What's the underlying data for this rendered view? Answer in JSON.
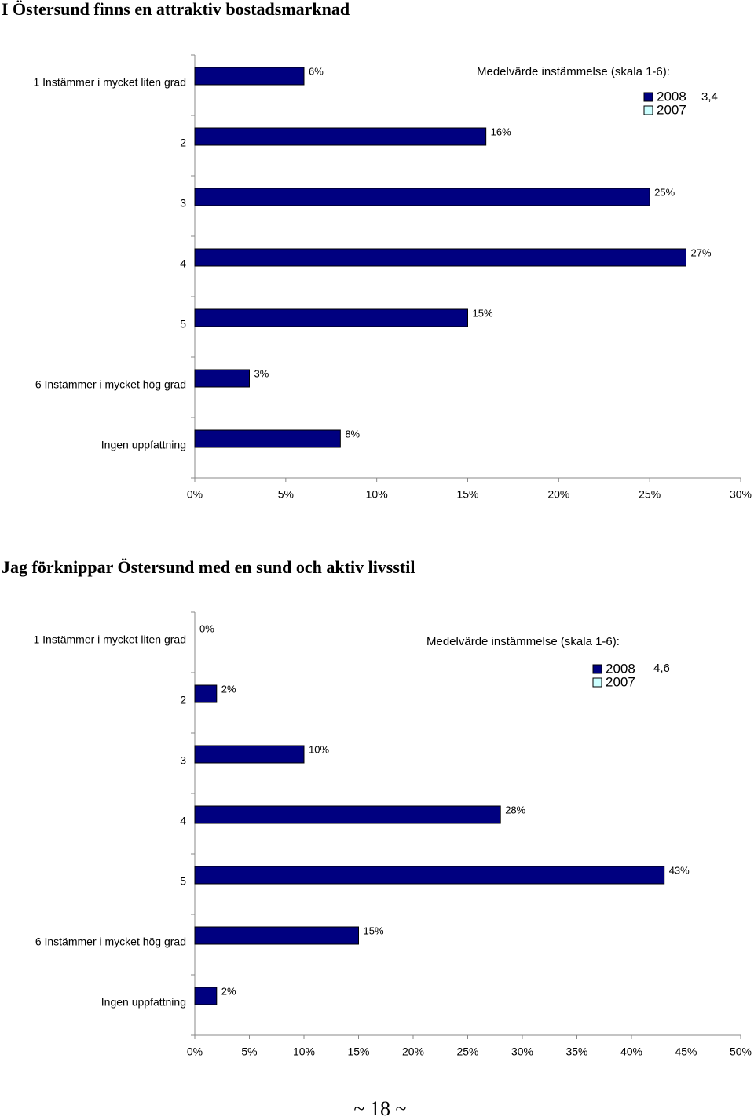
{
  "chart_data": [
    {
      "type": "bar",
      "orientation": "horizontal",
      "title": "I Östersund finns en attraktiv bostadsmarknad",
      "categories": [
        "1 Instämmer i mycket liten grad",
        "2",
        "3",
        "4",
        "5",
        "6 Instämmer i mycket hög grad",
        "Ingen uppfattning"
      ],
      "series": [
        {
          "name": "2008",
          "color": "#000080",
          "values": [
            6,
            16,
            25,
            27,
            15,
            3,
            8
          ],
          "value_labels": [
            "6%",
            "16%",
            "25%",
            "27%",
            "15%",
            "3%",
            "8%"
          ]
        },
        {
          "name": "2007",
          "color": "#ccffff",
          "values": [
            null,
            null,
            null,
            null,
            null,
            null,
            null
          ]
        }
      ],
      "xlim": [
        0,
        30
      ],
      "xticks": [
        {
          "value": 0,
          "label": "0%"
        },
        {
          "value": 5,
          "label": "5%"
        },
        {
          "value": 10,
          "label": "10%"
        },
        {
          "value": 15,
          "label": "15%"
        },
        {
          "value": 20,
          "label": "20%"
        },
        {
          "value": 25,
          "label": "25%"
        },
        {
          "value": 30,
          "label": "30%"
        }
      ],
      "annotation": "Medelvärde instämmelse (skala 1-6):",
      "mean_label": "3,4",
      "grid": false
    },
    {
      "type": "bar",
      "orientation": "horizontal",
      "title": "Jag förknippar Östersund med en sund och aktiv livsstil",
      "categories": [
        "1 Instämmer i mycket liten grad",
        "2",
        "3",
        "4",
        "5",
        "6 Instämmer i mycket hög grad",
        "Ingen uppfattning"
      ],
      "series": [
        {
          "name": "2008",
          "color": "#000080",
          "values": [
            0,
            2,
            10,
            28,
            43,
            15,
            2
          ],
          "value_labels": [
            "0%",
            "2%",
            "10%",
            "28%",
            "43%",
            "15%",
            "2%"
          ]
        },
        {
          "name": "2007",
          "color": "#ccffff",
          "values": [
            null,
            null,
            null,
            null,
            null,
            null,
            null
          ]
        }
      ],
      "xlim": [
        0,
        50
      ],
      "xticks": [
        {
          "value": 0,
          "label": "0%"
        },
        {
          "value": 5,
          "label": "5%"
        },
        {
          "value": 10,
          "label": "10%"
        },
        {
          "value": 15,
          "label": "15%"
        },
        {
          "value": 20,
          "label": "20%"
        },
        {
          "value": 25,
          "label": "25%"
        },
        {
          "value": 30,
          "label": "30%"
        },
        {
          "value": 35,
          "label": "35%"
        },
        {
          "value": 40,
          "label": "40%"
        },
        {
          "value": 45,
          "label": "45%"
        },
        {
          "value": 50,
          "label": "50%"
        }
      ],
      "annotation": "Medelvärde instämmelse (skala 1-6):",
      "mean_label": "4,6",
      "grid": false
    }
  ],
  "footer": "~ 18 ~"
}
